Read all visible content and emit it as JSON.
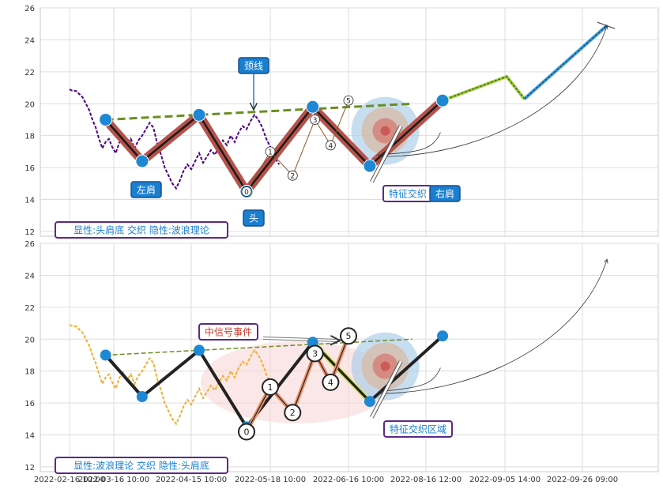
{
  "chart_data": {
    "type": "line",
    "x_ticks": [
      "2022-02-16 10:00",
      "2022-03-16 10:00",
      "2022-04-15 10:00",
      "2022-05-18 10:00",
      "2022-06-16 10:00",
      "2022-08-16 12:00",
      "2022-09-05 14:00",
      "2022-09-26 09:00"
    ],
    "ylim": [
      11.7,
      26
    ],
    "y_ticks": [
      12,
      14,
      16,
      18,
      20,
      22,
      24,
      26
    ],
    "grid": true,
    "price_series": [
      [
        0,
        20.9
      ],
      [
        2,
        20.8
      ],
      [
        4,
        20.8
      ],
      [
        6,
        20.6
      ],
      [
        8,
        20.4
      ],
      [
        10,
        20.0
      ],
      [
        12,
        19.6
      ],
      [
        14,
        19.0
      ],
      [
        16,
        18.5
      ],
      [
        18,
        17.8
      ],
      [
        20,
        17.2
      ],
      [
        22,
        17.6
      ],
      [
        24,
        17.8
      ],
      [
        26,
        17.3
      ],
      [
        28,
        16.9
      ],
      [
        30,
        17.6
      ],
      [
        32,
        17.9
      ],
      [
        34,
        17.4
      ],
      [
        36,
        17.8
      ],
      [
        38,
        17.2
      ],
      [
        40,
        17.7
      ],
      [
        42,
        18.0
      ],
      [
        44,
        18.4
      ],
      [
        46,
        18.8
      ],
      [
        48,
        18.5
      ],
      [
        50,
        17.5
      ],
      [
        52,
        16.8
      ],
      [
        54,
        16.0
      ],
      [
        56,
        15.5
      ],
      [
        58,
        15.0
      ],
      [
        60,
        14.7
      ],
      [
        62,
        15.2
      ],
      [
        64,
        15.8
      ],
      [
        66,
        16.2
      ],
      [
        68,
        15.9
      ],
      [
        70,
        16.4
      ],
      [
        72,
        16.9
      ],
      [
        74,
        16.3
      ],
      [
        76,
        16.7
      ],
      [
        78,
        17.1
      ],
      [
        80,
        16.8
      ],
      [
        82,
        17.3
      ],
      [
        84,
        17.7
      ],
      [
        86,
        17.4
      ],
      [
        88,
        18.0
      ],
      [
        90,
        17.6
      ],
      [
        92,
        18.2
      ],
      [
        94,
        18.6
      ],
      [
        96,
        18.4
      ],
      [
        98,
        18.9
      ],
      [
        100,
        19.3
      ],
      [
        102,
        19.0
      ],
      [
        104,
        18.5
      ],
      [
        106,
        17.8
      ],
      [
        108,
        17.3
      ],
      [
        110,
        16.6
      ],
      [
        112,
        16.2
      ]
    ],
    "panels": [
      {
        "points": [
          [
            22,
            19.0
          ],
          [
            42,
            16.4
          ],
          [
            72,
            19.3
          ],
          [
            96,
            14.5
          ],
          [
            127,
            19.8
          ],
          [
            154,
            16.1
          ],
          [
            191,
            20.2
          ]
        ],
        "neckline": [
          [
            22,
            19.0
          ],
          [
            176,
            20.0
          ]
        ],
        "forecast": [
          [
            191,
            20.2
          ],
          [
            222,
            21.7
          ],
          [
            232,
            20.3
          ],
          [
            279,
            24.9
          ]
        ],
        "wave_points": [
          {
            "label": "0",
            "x": 96,
            "y": 14.5
          },
          {
            "label": "1",
            "x": 108,
            "y": 17.0
          },
          {
            "label": "2",
            "x": 118,
            "y": 15.5
          },
          {
            "label": "3",
            "x": 128,
            "y": 19.0
          },
          {
            "label": "4",
            "x": 135,
            "y": 17.4
          },
          {
            "label": "5",
            "x": 143,
            "y": 20.2
          }
        ]
      },
      {
        "points": [
          [
            22,
            19.0
          ],
          [
            42,
            16.4
          ],
          [
            72,
            19.3
          ],
          [
            96,
            14.5
          ],
          [
            127,
            19.8
          ],
          [
            154,
            16.1
          ],
          [
            191,
            20.2
          ]
        ],
        "neckline": [
          [
            22,
            19.0
          ],
          [
            176,
            20.0
          ]
        ],
        "wave_points": [
          {
            "label": "0",
            "x": 96,
            "y": 14.2
          },
          {
            "label": "1",
            "x": 108,
            "y": 17.0
          },
          {
            "label": "2",
            "x": 118,
            "y": 15.4
          },
          {
            "label": "3",
            "x": 128,
            "y": 19.1
          },
          {
            "label": "4",
            "x": 135,
            "y": 17.3
          },
          {
            "label": "5",
            "x": 143,
            "y": 20.2
          }
        ]
      }
    ],
    "annotations": {
      "top": {
        "neckline": "颈线",
        "left_shoulder": "左肩",
        "head": "头",
        "right_shoulder": "右肩",
        "feature_zone": "特征交织",
        "legend": "显性:头肩底 交织 隐性:波浪理论"
      },
      "bottom": {
        "mid_signal": "中信号事件",
        "feature_zone": "特征交织区域",
        "legend": "显性:波浪理论 交织 隐性:头肩底"
      }
    },
    "colors": {
      "price_top": "#4b0082",
      "price_bottom": "#f0b030",
      "pattern_top": "#b5524a",
      "pattern_bottom": "#222222",
      "node": "#1e88d4",
      "neckline": "#6b8e23",
      "forecast_green": "#9acd32",
      "forecast_blue": "#3399dd",
      "label_bg": "#1a7fcf",
      "label_border": "#5b2a86",
      "label_text_blue": "#1a7fcf",
      "label_text_red": "#c0392b"
    }
  }
}
